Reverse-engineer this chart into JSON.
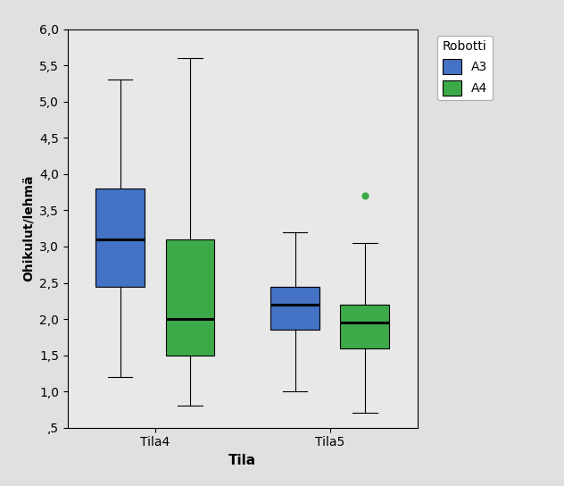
{
  "title": "",
  "xlabel": "Tila",
  "ylabel": "Ohikulut/lehmä",
  "ylim": [
    0.5,
    6.0
  ],
  "yticks": [
    0.5,
    1.0,
    1.5,
    2.0,
    2.5,
    3.0,
    3.5,
    4.0,
    4.5,
    5.0,
    5.5,
    6.0
  ],
  "ytick_labels": [
    ",5",
    "1,0",
    "1,5",
    "2,0",
    "2,5",
    "3,0",
    "3,5",
    "4,0",
    "4,5",
    "5,0",
    "5,5",
    "6,0"
  ],
  "categories": [
    "Tila4",
    "Tila5"
  ],
  "legend_title": "Robotti",
  "legend_labels": [
    "A3",
    "A4"
  ],
  "color_A3": "#4472C4",
  "color_A4": "#3DAA4A",
  "plot_bg_color": "#E8E8E8",
  "fig_bg_color": "#E0E0E0",
  "offsets": [
    -0.2,
    0.2
  ],
  "box_width": 0.28,
  "boxes": {
    "Tila4": {
      "A3": {
        "whislo": 1.2,
        "q1": 2.45,
        "med": 3.1,
        "q3": 3.8,
        "whishi": 5.3
      },
      "A4": {
        "whislo": 0.8,
        "q1": 1.5,
        "med": 2.0,
        "q3": 3.1,
        "whishi": 5.6
      }
    },
    "Tila5": {
      "A3": {
        "whislo": 1.0,
        "q1": 1.85,
        "med": 2.2,
        "q3": 2.45,
        "whishi": 3.2
      },
      "A4": {
        "whislo": 0.7,
        "q1": 1.6,
        "med": 1.95,
        "q3": 2.2,
        "whishi": 3.05,
        "fliers": [
          3.7
        ]
      }
    }
  }
}
